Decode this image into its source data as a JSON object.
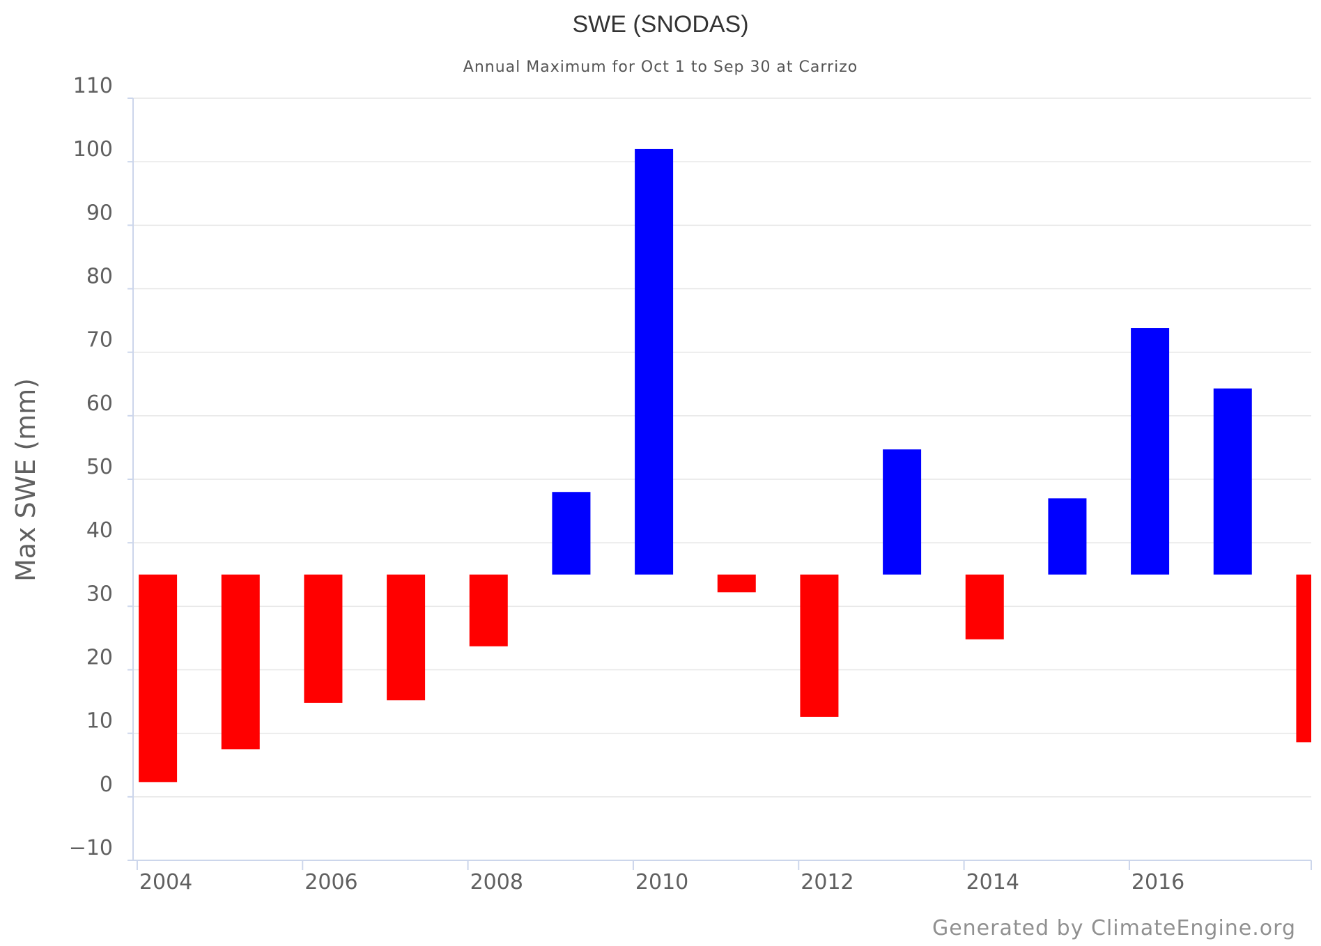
{
  "chart_data": {
    "type": "bar",
    "title": "SWE (SNODAS)",
    "subtitle": "Annual Maximum for Oct 1 to Sep 30 at Carrizo",
    "ylabel": "Max SWE (mm)",
    "xlabel": "",
    "baseline": 35,
    "ylim": [
      -10,
      110
    ],
    "yticks": [
      -10,
      0,
      10,
      20,
      30,
      40,
      50,
      60,
      70,
      80,
      90,
      100,
      110
    ],
    "ytick_labels": [
      "−10",
      "0",
      "10",
      "20",
      "30",
      "40",
      "50",
      "60",
      "70",
      "80",
      "90",
      "100",
      "110"
    ],
    "xlim": [
      2003.95,
      2018.2
    ],
    "xticks": [
      2004,
      2006,
      2008,
      2010,
      2012,
      2014,
      2016
    ],
    "xtick_labels": [
      "2004",
      "2006",
      "2008",
      "2010",
      "2012",
      "2014",
      "2016"
    ],
    "grid": true,
    "colors": {
      "above": "#0000ff",
      "below": "#ff0000",
      "grid": "#e6e6e6",
      "axis": "#ccd6eb"
    },
    "categories": [
      "2004",
      "2005",
      "2006",
      "2007",
      "2008",
      "2009",
      "2010",
      "2011",
      "2012",
      "2013",
      "2014",
      "2015",
      "2016",
      "2017",
      "2018"
    ],
    "values": [
      2.3,
      7.5,
      14.8,
      15.2,
      23.7,
      48.0,
      102.0,
      32.2,
      12.6,
      54.7,
      24.8,
      47.0,
      73.8,
      64.3,
      8.6
    ]
  },
  "credit": "Generated by ClimateEngine.org"
}
